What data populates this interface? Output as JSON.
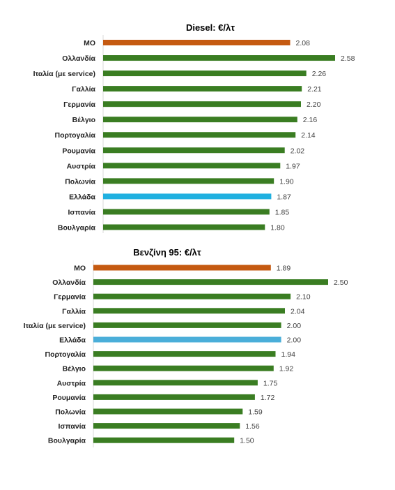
{
  "chart_data": [
    {
      "type": "bar",
      "orientation": "horizontal",
      "title": "Diesel: €/λτ",
      "categories": [
        "ΜΟ",
        "Ολλανδία",
        "Ιταλία (με service)",
        "Γαλλία",
        "Γερμανία",
        "Βέλγιο",
        "Πορτογαλία",
        "Ρουμανία",
        "Αυστρία",
        "Πολωνία",
        "Ελλάδα",
        "Ισπανία",
        "Βουλγαρία"
      ],
      "values": [
        2.08,
        2.58,
        2.26,
        2.21,
        2.2,
        2.16,
        2.14,
        2.02,
        1.97,
        1.9,
        1.87,
        1.85,
        1.8
      ],
      "value_labels": [
        "2.08",
        "2.58",
        "2.26",
        "2.21",
        "2.20",
        "2.16",
        "2.14",
        "2.02",
        "1.97",
        "1.90",
        "1.87",
        "1.85",
        "1.80"
      ],
      "colors": [
        "#c55a11",
        "#3a7d22",
        "#3a7d22",
        "#3a7d22",
        "#3a7d22",
        "#3a7d22",
        "#3a7d22",
        "#3a7d22",
        "#3a7d22",
        "#3a7d22",
        "#1fb0e0",
        "#3a7d22",
        "#3a7d22"
      ],
      "xlim": [
        0,
        2.58
      ],
      "grid": false,
      "legend": "none"
    },
    {
      "type": "bar",
      "orientation": "horizontal",
      "title": "Βενζίνη 95: €/λτ",
      "categories": [
        "ΜΟ",
        "Ολλανδία",
        "Γερμανία",
        "Γαλλία",
        "Ιταλία (με service)",
        "Ελλάδα",
        "Πορτογαλία",
        "Βέλγιο",
        "Αυστρία",
        "Ρουμανία",
        "Πολωνία",
        "Ισπανία",
        "Βουλγαρία"
      ],
      "values": [
        1.89,
        2.5,
        2.1,
        2.04,
        2.0,
        2.0,
        1.94,
        1.92,
        1.75,
        1.72,
        1.59,
        1.56,
        1.5
      ],
      "value_labels": [
        "1.89",
        "2.50",
        "2.10",
        "2.04",
        "2.00",
        "2.00",
        "1.94",
        "1.92",
        "1.75",
        "1.72",
        "1.59",
        "1.56",
        "1.50"
      ],
      "colors": [
        "#c55a11",
        "#3a7d22",
        "#3a7d22",
        "#3a7d22",
        "#3a7d22",
        "#4aaed9",
        "#3a7d22",
        "#3a7d22",
        "#3a7d22",
        "#3a7d22",
        "#3a7d22",
        "#3a7d22",
        "#3a7d22"
      ],
      "xlim": [
        0,
        2.5
      ],
      "grid": false,
      "legend": "none"
    }
  ]
}
